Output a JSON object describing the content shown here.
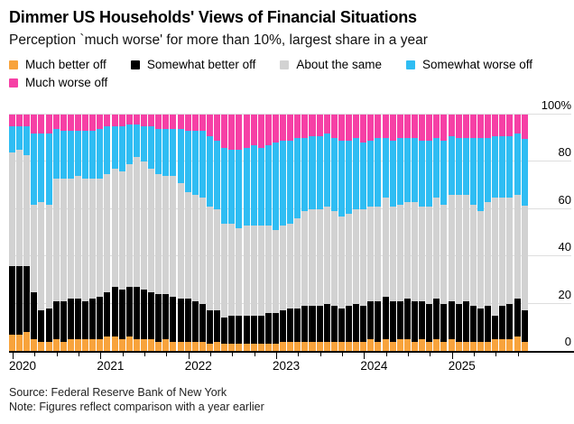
{
  "header": {
    "title": "Dimmer US Households' Views of Financial Situations",
    "subtitle": "Perception `much worse' for more than 10%, largest share in a year"
  },
  "footer": {
    "source": "Source: Federal Reserve Bank of New York",
    "note": "Note: Figures reflect comparison with a year earlier"
  },
  "chart_data": {
    "type": "bar",
    "stacked": true,
    "unit": "percent",
    "title": "Dimmer US Households' Views of Financial Situations",
    "x_start": "2020-01",
    "x_end": "2025-11",
    "ylim": [
      0,
      100
    ],
    "grid": "horizontal",
    "legend_position": "top",
    "y_ticks": [
      {
        "label": "0",
        "value": 0
      },
      {
        "label": "20",
        "value": 20
      },
      {
        "label": "40",
        "value": 40
      },
      {
        "label": "60",
        "value": 60
      },
      {
        "label": "80",
        "value": 80
      },
      {
        "label": "100%",
        "value": 100
      }
    ],
    "year_labels": [
      "2020",
      "2021",
      "2022",
      "2023",
      "2024",
      "2025"
    ],
    "year_start_indices": [
      0,
      12,
      24,
      36,
      48,
      60
    ],
    "minor_tick_every_months": 3,
    "series": [
      {
        "name": "Much better off",
        "icon": "orange-swatch-icon",
        "color": "#F8A33C",
        "values": [
          7,
          7,
          8,
          5,
          4,
          4,
          5,
          4,
          5,
          5,
          5,
          5,
          5,
          6,
          6,
          5,
          6,
          5,
          5,
          5,
          4,
          5,
          4,
          4,
          4,
          4,
          4,
          3,
          4,
          3,
          3,
          3,
          3,
          3,
          3,
          3,
          3,
          4,
          4,
          4,
          4,
          4,
          4,
          4,
          4,
          4,
          4,
          4,
          4,
          5,
          4,
          5,
          4,
          5,
          5,
          4,
          5,
          4,
          5,
          4,
          5,
          4,
          4,
          4,
          4,
          4,
          5,
          5,
          5,
          6,
          4
        ]
      },
      {
        "name": "Somewhat better off",
        "icon": "black-swatch-icon",
        "color": "#000000",
        "values": [
          29,
          29,
          28,
          20,
          13,
          14,
          16,
          17,
          17,
          17,
          16,
          17,
          18,
          19,
          21,
          21,
          21,
          22,
          21,
          20,
          20,
          19,
          19,
          18,
          18,
          17,
          16,
          14,
          13,
          11,
          12,
          12,
          12,
          12,
          12,
          13,
          13,
          13,
          14,
          14,
          15,
          15,
          15,
          16,
          15,
          14,
          15,
          16,
          15,
          16,
          17,
          18,
          17,
          16,
          17,
          17,
          16,
          16,
          17,
          16,
          16,
          16,
          17,
          15,
          14,
          15,
          10,
          14,
          15,
          16,
          13
        ]
      },
      {
        "name": "About the same",
        "icon": "gray-swatch-icon",
        "color": "#D2D2D2",
        "values": [
          48,
          49,
          47,
          37,
          46,
          44,
          52,
          52,
          51,
          52,
          52,
          51,
          50,
          50,
          50,
          50,
          52,
          55,
          54,
          52,
          51,
          50,
          51,
          49,
          45,
          45,
          45,
          44,
          43,
          40,
          39,
          37,
          38,
          38,
          38,
          37,
          35,
          36,
          36,
          38,
          40,
          41,
          41,
          41,
          40,
          39,
          39,
          40,
          41,
          40,
          40,
          42,
          40,
          41,
          41,
          42,
          40,
          41,
          43,
          42,
          45,
          46,
          45,
          43,
          41,
          44,
          50,
          46,
          45,
          44,
          44.5
        ]
      },
      {
        "name": "Somewhat worse off",
        "icon": "blue-swatch-icon",
        "color": "#2FBDF3",
        "values": [
          11,
          10,
          12,
          30,
          29,
          30,
          21,
          20,
          20,
          19,
          20,
          20,
          21,
          20,
          18,
          19,
          17,
          14,
          15,
          18,
          19,
          20,
          20,
          23,
          26,
          27,
          28,
          30,
          29,
          32,
          31,
          33,
          33,
          34,
          33,
          34,
          37,
          36,
          35,
          34,
          31,
          31,
          31,
          31,
          31,
          32,
          31,
          30,
          28,
          28,
          29,
          25,
          28,
          28,
          27,
          27,
          28,
          28,
          25,
          27,
          25,
          24,
          24,
          28,
          31,
          27,
          26,
          26,
          26,
          26,
          28.2
        ]
      },
      {
        "name": "Much worse off",
        "icon": "pink-swatch-icon",
        "color": "#F640A5",
        "values": [
          5,
          5,
          5,
          8,
          8,
          8,
          6,
          7,
          7,
          7,
          7,
          7,
          6,
          5,
          5,
          5,
          4,
          4,
          5,
          5,
          6,
          6,
          6,
          6,
          7,
          7,
          7,
          9,
          11,
          14,
          15,
          15,
          14,
          13,
          14,
          13,
          12,
          11,
          11,
          10,
          10,
          9,
          9,
          8,
          10,
          11,
          11,
          10,
          12,
          11,
          10,
          10,
          11,
          10,
          10,
          10,
          11,
          11,
          10,
          11,
          9,
          10,
          10,
          10,
          10,
          10,
          9,
          9,
          9,
          8,
          10.3
        ]
      }
    ]
  }
}
